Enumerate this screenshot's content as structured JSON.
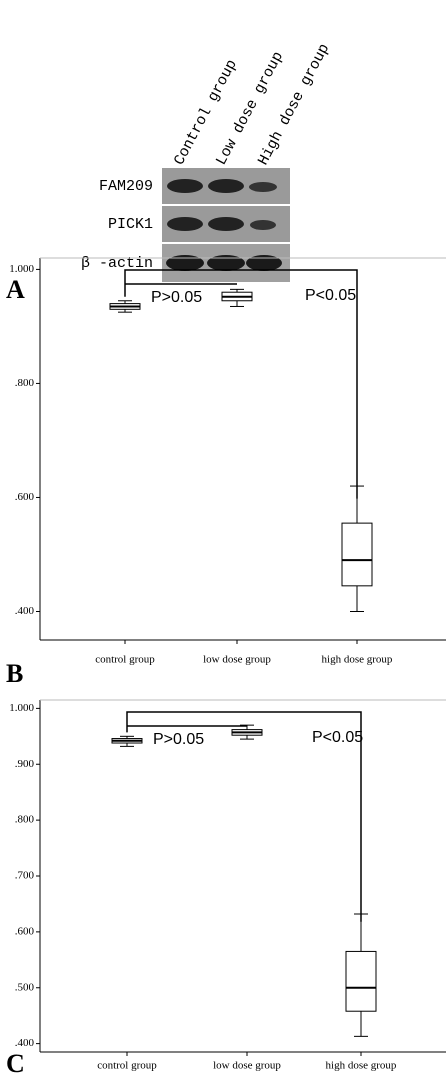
{
  "blot": {
    "panel_label": "A",
    "columns": [
      "Control group",
      "Low dose group",
      "High dose group"
    ],
    "rows": [
      "FAM209",
      "PICK1",
      "β -actin"
    ]
  },
  "chart_data": [
    {
      "type": "box",
      "panel_label": "B",
      "categories": [
        "control group",
        "low dose group",
        "high dose group"
      ],
      "stats": {
        "min": [
          0.925,
          0.935,
          0.4
        ],
        "q1": [
          0.93,
          0.945,
          0.445
        ],
        "median": [
          0.935,
          0.952,
          0.49
        ],
        "q3": [
          0.94,
          0.96,
          0.555
        ],
        "max": [
          0.945,
          0.965,
          0.62
        ]
      },
      "ylim": [
        0.35,
        1.02
      ],
      "yticks": [
        {
          "value": 0.4,
          "label": ".400"
        },
        {
          "value": 0.6,
          "label": ".600"
        },
        {
          "value": 0.8,
          "label": ".800"
        },
        {
          "value": 1,
          "label": "1.000"
        }
      ],
      "annotations": [
        "P>0.05",
        "P<0.05"
      ]
    },
    {
      "type": "box",
      "panel_label": "C",
      "categories": [
        "control group",
        "low dose group",
        "high dose group"
      ],
      "stats": {
        "min": [
          0.932,
          0.945,
          0.413
        ],
        "q1": [
          0.938,
          0.952,
          0.458
        ],
        "median": [
          0.942,
          0.957,
          0.5
        ],
        "q3": [
          0.946,
          0.962,
          0.565
        ],
        "max": [
          0.95,
          0.97,
          0.632
        ]
      },
      "ylim": [
        0.385,
        1.015
      ],
      "yticks": [
        {
          "value": 0.4,
          "label": ".400"
        },
        {
          "value": 0.5,
          "label": ".500"
        },
        {
          "value": 0.6,
          "label": ".600"
        },
        {
          "value": 0.7,
          "label": ".700"
        },
        {
          "value": 0.8,
          "label": ".800"
        },
        {
          "value": 0.9,
          "label": ".900"
        },
        {
          "value": 1,
          "label": "1.000"
        }
      ],
      "annotations": [
        "P>0.05",
        "P<0.05"
      ]
    }
  ]
}
